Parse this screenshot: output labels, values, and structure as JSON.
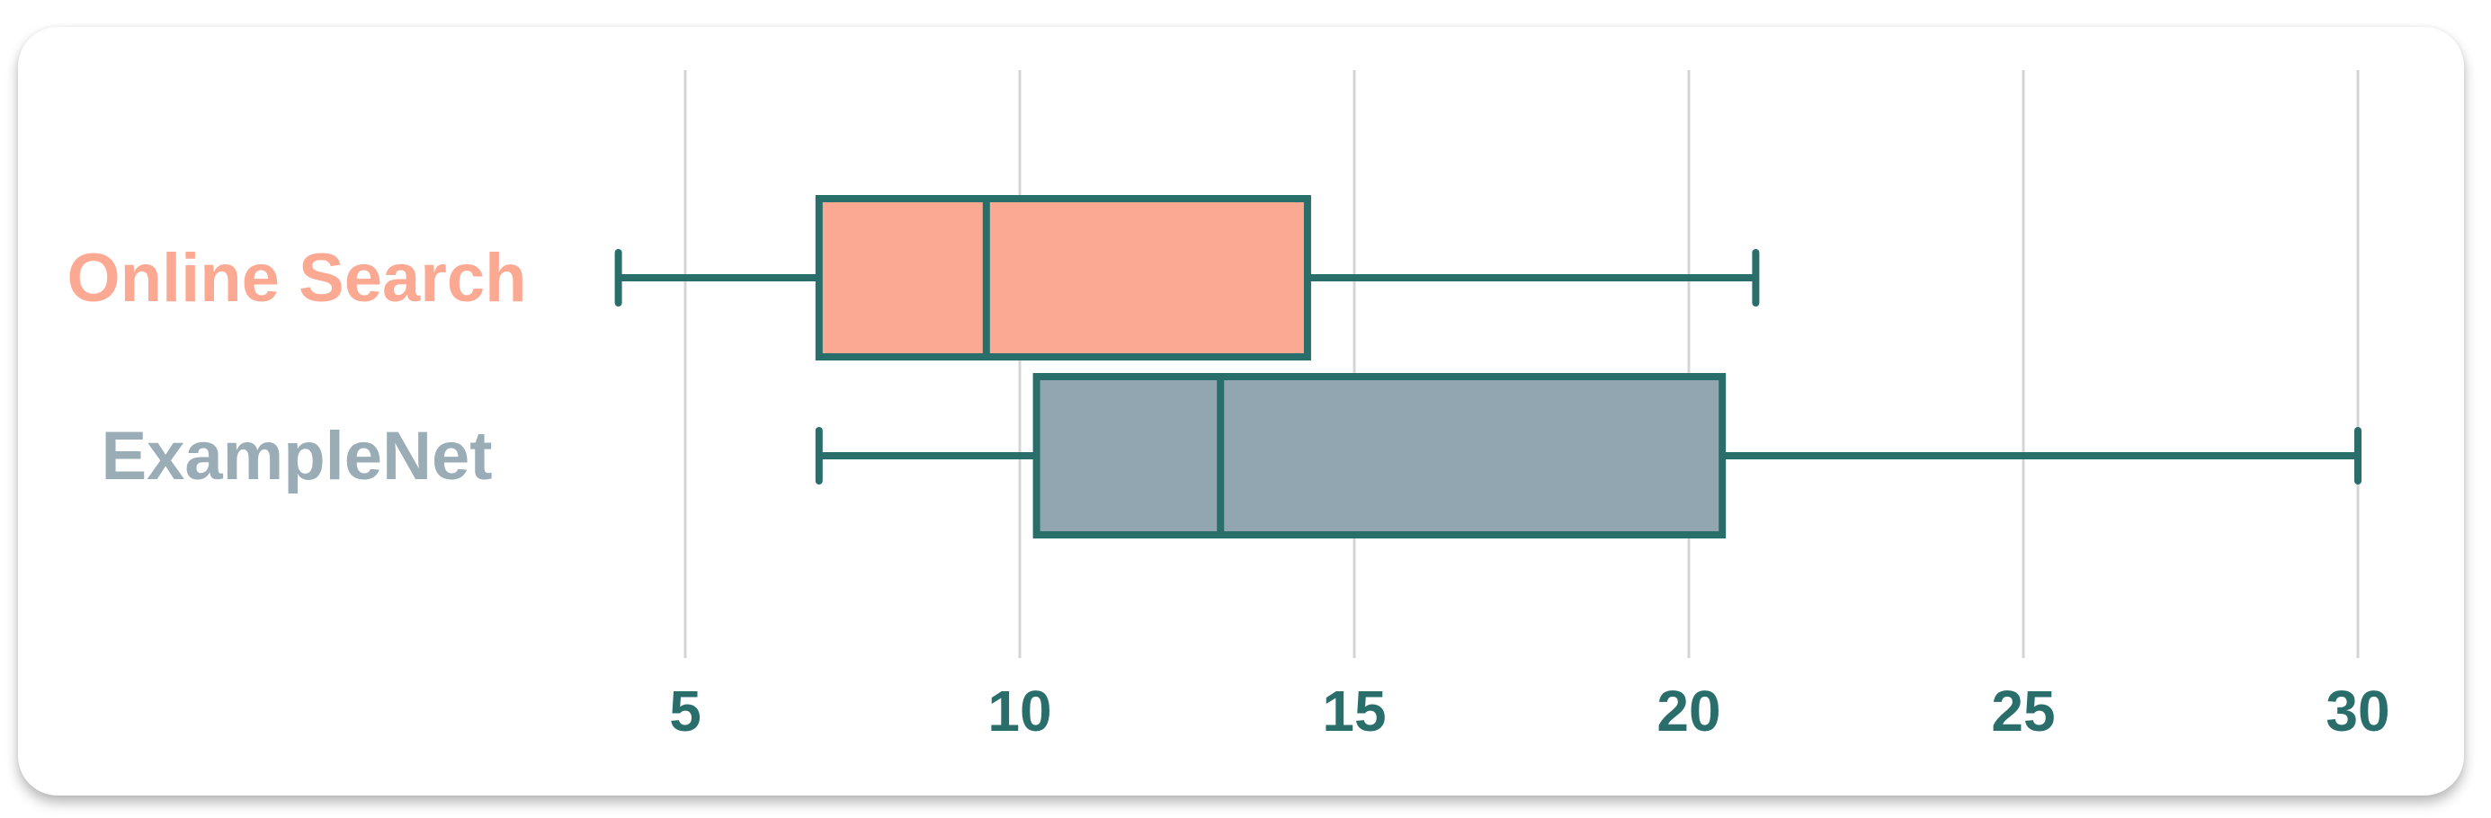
{
  "chart_data": {
    "type": "boxplot",
    "orientation": "horizontal",
    "title": "",
    "xlabel": "",
    "ylabel": "",
    "xlim": [
      3,
      31
    ],
    "xticks": [
      5,
      10,
      15,
      20,
      25,
      30
    ],
    "grid": true,
    "legend": "none",
    "series": [
      {
        "name": "Online Search",
        "min": 4,
        "q1": 7,
        "median": 9.5,
        "q3": 14.3,
        "max": 21,
        "fill_color": "#fba992",
        "label_color": "#fba992"
      },
      {
        "name": "ExampleNet",
        "min": 7,
        "q1": 10.25,
        "median": 13,
        "q3": 20.5,
        "max": 30,
        "fill_color": "#91a6b0",
        "label_color": "#9aacb6"
      }
    ],
    "stroke_color": "#2a6e6c",
    "tick_color": "#2a6e6c",
    "grid_color": "#d4d4d4"
  }
}
